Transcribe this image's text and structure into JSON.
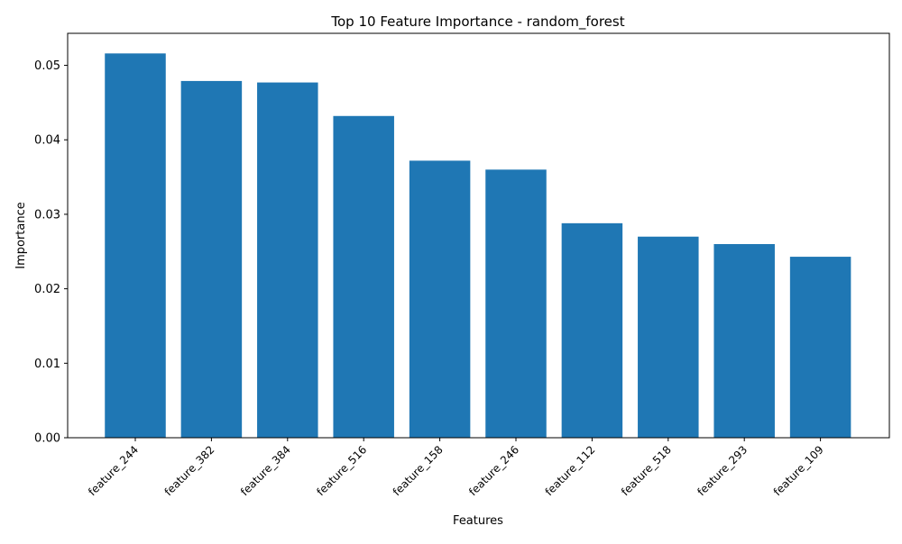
{
  "chart_data": {
    "type": "bar",
    "title": "Top 10 Feature Importance - random_forest",
    "xlabel": "Features",
    "ylabel": "Importance",
    "categories": [
      "feature_244",
      "feature_382",
      "feature_384",
      "feature_516",
      "feature_158",
      "feature_246",
      "feature_112",
      "feature_518",
      "feature_293",
      "feature_109"
    ],
    "values": [
      0.0516,
      0.0479,
      0.0477,
      0.0432,
      0.0372,
      0.036,
      0.0288,
      0.027,
      0.026,
      0.0243
    ],
    "ylim": [
      0,
      0.0543
    ],
    "yticks": [
      0.0,
      0.01,
      0.02,
      0.03,
      0.04,
      0.05
    ],
    "ytick_labels": [
      "0.00",
      "0.01",
      "0.02",
      "0.03",
      "0.04",
      "0.05"
    ],
    "grid": false,
    "legend": "none",
    "bar_color": "#1f77b4"
  }
}
